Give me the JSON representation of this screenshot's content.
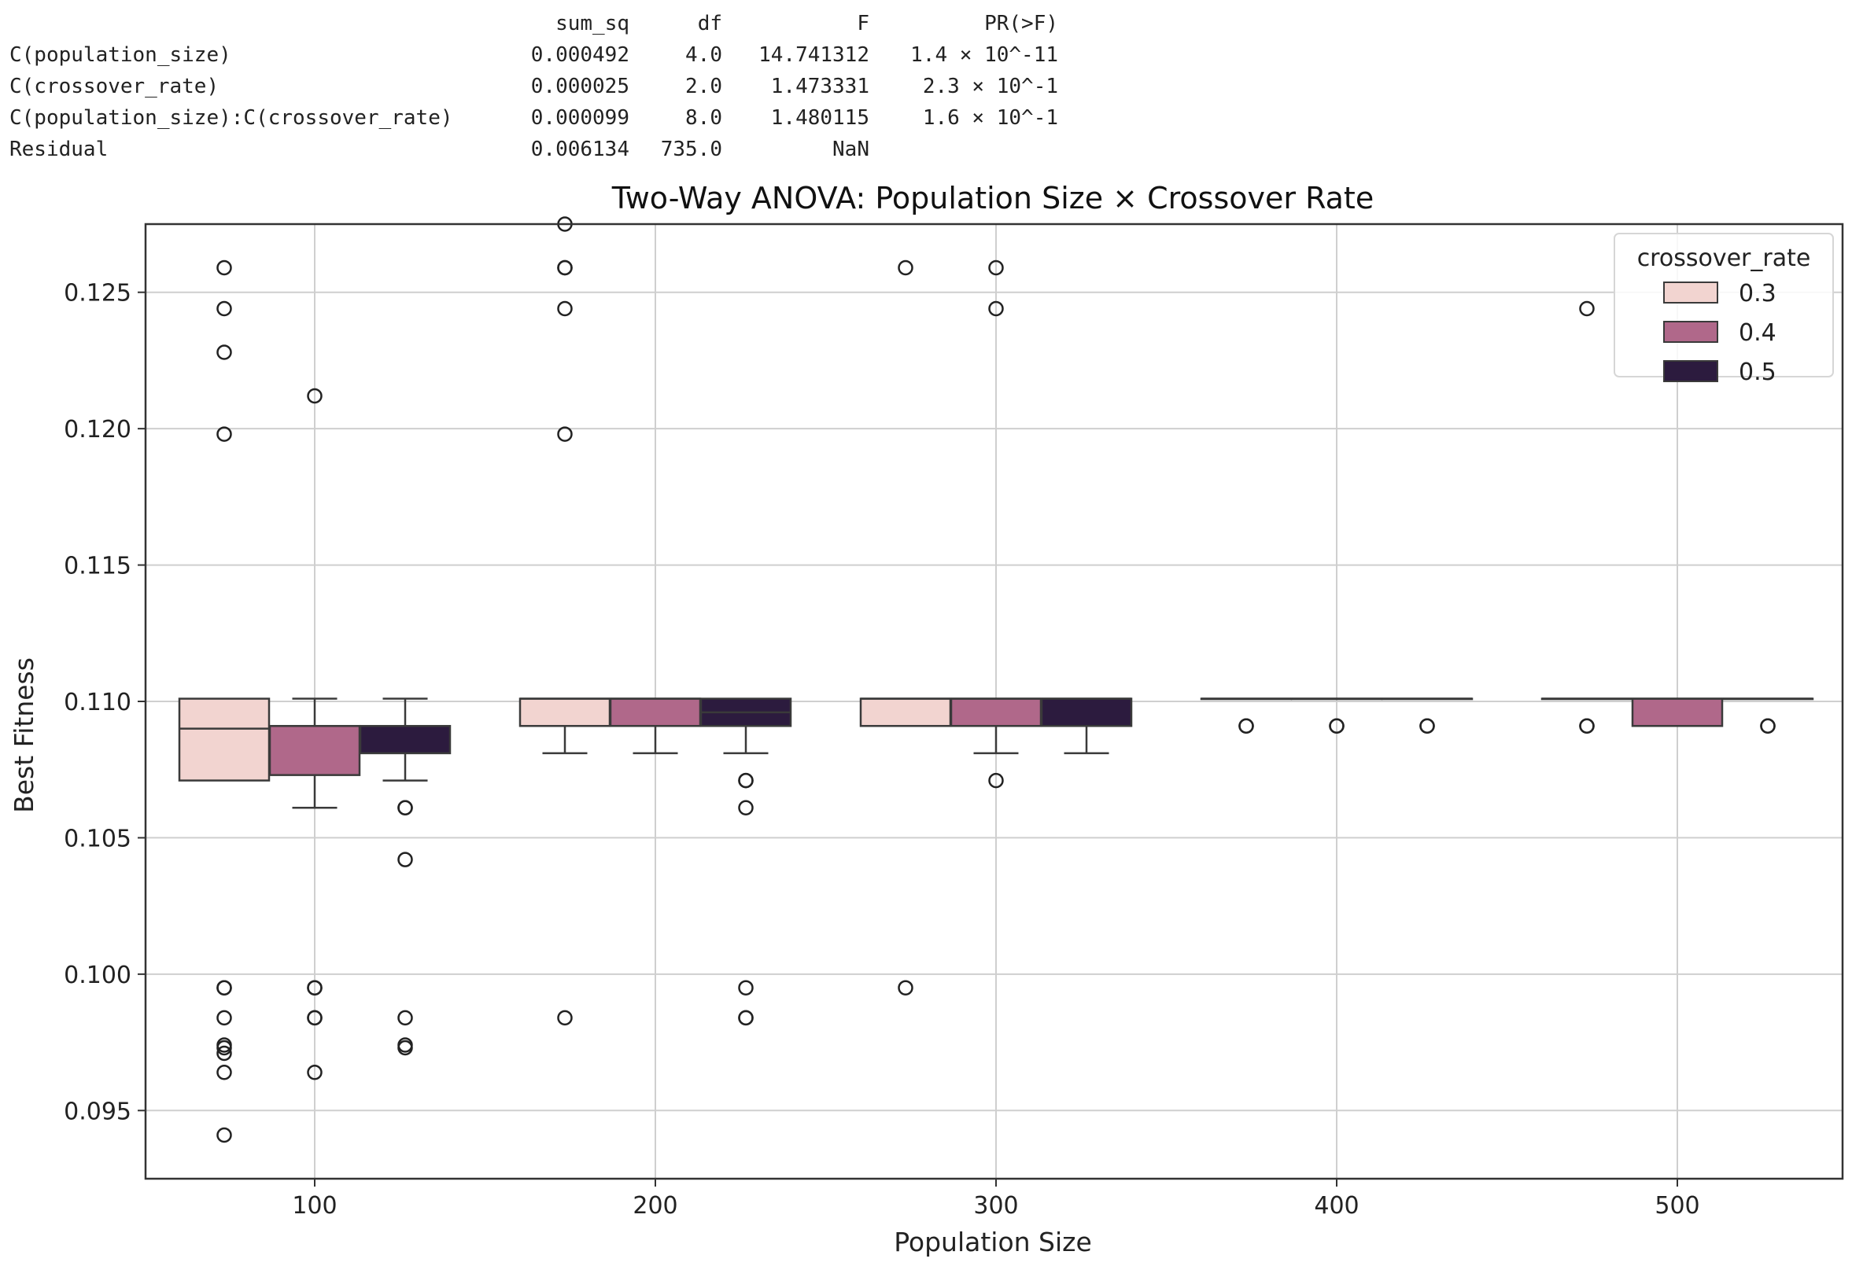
{
  "anova_table": {
    "columns": [
      "sum_sq",
      "df",
      "F",
      "PR(>F)"
    ],
    "rows": [
      {
        "term": "C(population_size)",
        "sum_sq": "0.000492",
        "df": "4.0",
        "F": "14.741312",
        "p": "1.4 × 10^-11"
      },
      {
        "term": "C(crossover_rate)",
        "sum_sq": "0.000025",
        "df": "2.0",
        "F": "1.473331",
        "p": "2.3 × 10^-1"
      },
      {
        "term": "C(population_size):C(crossover_rate)",
        "sum_sq": "0.000099",
        "df": "8.0",
        "F": "1.480115",
        "p": "1.6 × 10^-1"
      },
      {
        "term": "Residual",
        "sum_sq": "0.006134",
        "df": "735.0",
        "F": "NaN",
        "p": ""
      }
    ]
  },
  "chart_data": {
    "type": "box",
    "title": "Two-Way ANOVA: Population Size × Crossover Rate",
    "xlabel": "Population Size",
    "ylabel": "Best Fitness",
    "categories": [
      "100",
      "200",
      "300",
      "400",
      "500"
    ],
    "ylim": [
      0.0925,
      0.1275
    ],
    "yticks": [
      0.095,
      0.1,
      0.105,
      0.11,
      0.115,
      0.12,
      0.125
    ],
    "ytick_labels": [
      "0.095",
      "0.100",
      "0.105",
      "0.110",
      "0.115",
      "0.120",
      "0.125"
    ],
    "grid": true,
    "legend": {
      "title": "crossover_rate",
      "position": "top-right"
    },
    "series": [
      {
        "name": "0.3",
        "color": "#f2d4d0",
        "boxes": [
          {
            "category": "100",
            "whislo": 0.1071,
            "q1": 0.1071,
            "med": 0.109,
            "q3": 0.1101,
            "whishi": 0.1101,
            "fliers": [
              0.1259,
              0.1244,
              0.1228,
              0.1198,
              0.0995,
              0.0995,
              0.0984,
              0.0974,
              0.0973,
              0.0971,
              0.0964,
              0.0941
            ]
          },
          {
            "category": "200",
            "whislo": 0.1081,
            "q1": 0.1091,
            "med": 0.1101,
            "q3": 0.1101,
            "whishi": 0.1101,
            "fliers": [
              0.1275,
              0.1259,
              0.1259,
              0.1244,
              0.1198,
              0.0984
            ]
          },
          {
            "category": "300",
            "whislo": 0.1091,
            "q1": 0.1091,
            "med": 0.1101,
            "q3": 0.1101,
            "whishi": 0.1101,
            "fliers": [
              0.1259,
              0.0995
            ]
          },
          {
            "category": "400",
            "whislo": 0.1101,
            "q1": 0.1101,
            "med": 0.1101,
            "q3": 0.1101,
            "whishi": 0.1101,
            "fliers": [
              0.1091,
              0.1091
            ]
          },
          {
            "category": "500",
            "whislo": 0.1101,
            "q1": 0.1101,
            "med": 0.1101,
            "q3": 0.1101,
            "whishi": 0.1101,
            "fliers": [
              0.1244,
              0.1091,
              0.1091
            ]
          }
        ]
      },
      {
        "name": "0.4",
        "color": "#b0688a",
        "boxes": [
          {
            "category": "100",
            "whislo": 0.1061,
            "q1": 0.1073,
            "med": 0.1091,
            "q3": 0.1091,
            "whishi": 0.1101,
            "fliers": [
              0.1212,
              0.0995,
              0.0995,
              0.0984,
              0.0984,
              0.0964
            ]
          },
          {
            "category": "200",
            "whislo": 0.1081,
            "q1": 0.1091,
            "med": 0.1101,
            "q3": 0.1101,
            "whishi": 0.1101,
            "fliers": []
          },
          {
            "category": "300",
            "whislo": 0.1081,
            "q1": 0.1091,
            "med": 0.1101,
            "q3": 0.1101,
            "whishi": 0.1101,
            "fliers": [
              0.1259,
              0.1244,
              0.1071
            ]
          },
          {
            "category": "400",
            "whislo": 0.1101,
            "q1": 0.1101,
            "med": 0.1101,
            "q3": 0.1101,
            "whishi": 0.1101,
            "fliers": [
              0.1091,
              0.1091
            ]
          },
          {
            "category": "500",
            "whislo": 0.1091,
            "q1": 0.1091,
            "med": 0.1101,
            "q3": 0.1101,
            "whishi": 0.1101,
            "fliers": []
          }
        ]
      },
      {
        "name": "0.5",
        "color": "#2c1b3e",
        "boxes": [
          {
            "category": "100",
            "whislo": 0.1071,
            "q1": 0.1081,
            "med": 0.1091,
            "q3": 0.1091,
            "whishi": 0.1101,
            "fliers": [
              0.1061,
              0.1061,
              0.1042,
              0.0984,
              0.0974,
              0.0973
            ]
          },
          {
            "category": "200",
            "whislo": 0.1081,
            "q1": 0.1091,
            "med": 0.1096,
            "q3": 0.1101,
            "whishi": 0.1101,
            "fliers": [
              0.1071,
              0.1071,
              0.1061,
              0.0995,
              0.0984,
              0.0984
            ]
          },
          {
            "category": "300",
            "whislo": 0.1081,
            "q1": 0.1091,
            "med": 0.1101,
            "q3": 0.1101,
            "whishi": 0.1101,
            "fliers": []
          },
          {
            "category": "400",
            "whislo": 0.1101,
            "q1": 0.1101,
            "med": 0.1101,
            "q3": 0.1101,
            "whishi": 0.1101,
            "fliers": [
              0.1091,
              0.1091
            ]
          },
          {
            "category": "500",
            "whislo": 0.1101,
            "q1": 0.1101,
            "med": 0.1101,
            "q3": 0.1101,
            "whishi": 0.1101,
            "fliers": [
              0.1091,
              0.1091
            ]
          }
        ]
      }
    ]
  }
}
